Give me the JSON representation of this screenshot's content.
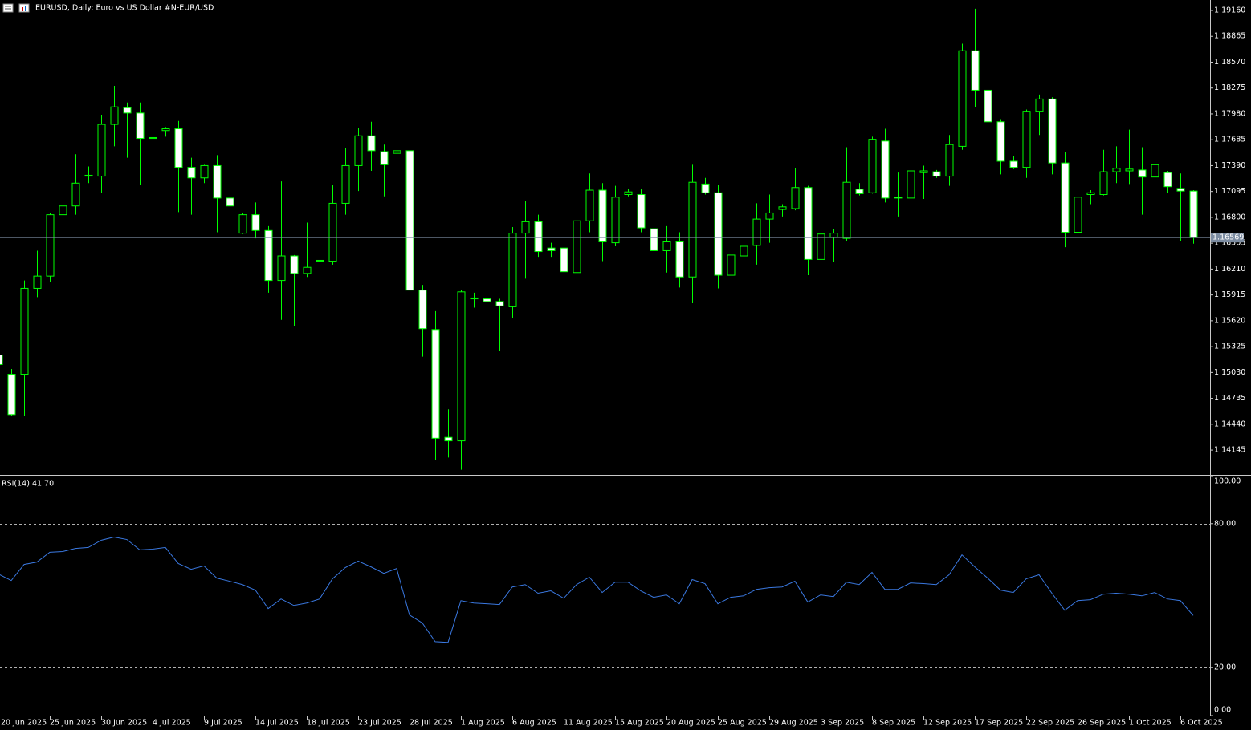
{
  "chart_data": [
    {
      "type": "candlestick",
      "title": "EURUSD, Daily:  Euro vs US Dollar #N-EUR/USD",
      "categories": [
        "20 Jun 2025",
        null,
        null,
        null,
        "25 Jun 2025",
        null,
        null,
        null,
        "30 Jun 2025",
        null,
        null,
        null,
        "4 Jul 2025",
        null,
        null,
        null,
        "9 Jul 2025",
        null,
        null,
        null,
        "14 Jul 2025",
        null,
        null,
        null,
        "18 Jul 2025",
        null,
        null,
        null,
        "23 Jul 2025",
        null,
        null,
        null,
        "28 Jul 2025",
        null,
        null,
        null,
        "1 Aug 2025",
        null,
        null,
        null,
        "6 Aug 2025",
        null,
        null,
        null,
        "11 Aug 2025",
        null,
        null,
        null,
        "15 Aug 2025",
        null,
        null,
        null,
        "20 Aug 2025",
        null,
        null,
        null,
        "25 Aug 2025",
        null,
        null,
        null,
        "29 Aug 2025",
        null,
        null,
        null,
        "3 Sep 2025",
        null,
        null,
        null,
        "8 Sep 2025",
        null,
        null,
        null,
        "12 Sep 2025",
        null,
        null,
        null,
        "17 Sep 2025",
        null,
        null,
        null,
        "22 Sep 2025",
        null,
        null,
        null,
        "26 Sep 2025",
        null,
        null,
        null,
        "1 Oct 2025",
        null,
        null,
        null,
        "6 Oct 2025",
        null
      ],
      "open": [
        1.1523,
        1.1501,
        1.1501,
        1.1599,
        1.1613,
        1.1683,
        1.1693,
        1.1727,
        1.1727,
        1.1786,
        1.1805,
        1.1799,
        1.177,
        1.1779,
        1.1781,
        1.1737,
        1.1725,
        1.1739,
        1.1702,
        1.1662,
        1.1683,
        1.1665,
        1.1608,
        1.1636,
        1.1616,
        1.163,
        1.163,
        1.1696,
        1.1739,
        1.1773,
        1.1755,
        1.1753,
        1.1756,
        1.1597,
        1.1552,
        1.1429,
        1.1425,
        1.1587,
        1.1587,
        1.1584,
        1.1578,
        1.1662,
        1.1675,
        1.1645,
        1.1645,
        1.1617,
        1.1676,
        1.1711,
        1.1651,
        1.1706,
        1.1706,
        1.1667,
        1.1642,
        1.1652,
        1.1612,
        1.1718,
        1.1708,
        1.1614,
        1.1636,
        1.1648,
        1.1678,
        1.1689,
        1.169,
        1.1714,
        1.1632,
        1.1657,
        1.1656,
        1.1712,
        1.1708,
        1.1767,
        1.1703,
        1.1702,
        1.1731,
        1.1732,
        1.1727,
        1.1761,
        1.187,
        1.1825,
        1.1789,
        1.1744,
        1.1737,
        1.1801,
        1.1815,
        1.1742,
        1.1663,
        1.1706,
        1.1706,
        1.1732,
        1.1733,
        1.1734,
        1.1726,
        1.1731,
        1.1713,
        1.171
      ],
      "high": [
        1.1525,
        1.1507,
        1.1608,
        1.1642,
        1.1685,
        1.1743,
        1.1752,
        1.1738,
        1.1797,
        1.183,
        1.1811,
        1.1811,
        1.1788,
        1.1783,
        1.179,
        1.1748,
        1.174,
        1.1751,
        1.1708,
        1.1685,
        1.1697,
        1.167,
        1.1721,
        1.1637,
        1.1674,
        1.1634,
        1.1717,
        1.1759,
        1.1782,
        1.1789,
        1.1763,
        1.1772,
        1.177,
        1.1603,
        1.1573,
        1.1461,
        1.1597,
        1.1594,
        1.1589,
        1.1587,
        1.1669,
        1.1699,
        1.1683,
        1.1651,
        1.1663,
        1.1695,
        1.173,
        1.1719,
        1.1716,
        1.1712,
        1.1712,
        1.169,
        1.167,
        1.1663,
        1.174,
        1.1725,
        1.1717,
        1.1658,
        1.1649,
        1.1696,
        1.1706,
        1.1695,
        1.1736,
        1.1716,
        1.1667,
        1.1667,
        1.176,
        1.1719,
        1.1772,
        1.1781,
        1.1731,
        1.1747,
        1.1739,
        1.1734,
        1.1774,
        1.1878,
        1.1918,
        1.1847,
        1.1792,
        1.175,
        1.1803,
        1.182,
        1.1817,
        1.1754,
        1.1707,
        1.1711,
        1.1757,
        1.1761,
        1.178,
        1.176,
        1.176,
        1.1733,
        1.173,
        1.1711
      ],
      "low": [
        1.1507,
        1.1453,
        1.1453,
        1.1589,
        1.1606,
        1.1681,
        1.1683,
        1.1719,
        1.1708,
        1.1761,
        1.1748,
        1.1717,
        1.1756,
        1.1772,
        1.1686,
        1.1683,
        1.1719,
        1.1663,
        1.1688,
        1.1661,
        1.1656,
        1.1594,
        1.1563,
        1.1556,
        1.1612,
        1.1623,
        1.1626,
        1.1683,
        1.171,
        1.1733,
        1.1704,
        1.1752,
        1.1587,
        1.1521,
        1.1403,
        1.1406,
        1.1392,
        1.1577,
        1.1549,
        1.1528,
        1.1565,
        1.161,
        1.1635,
        1.1635,
        1.1591,
        1.1603,
        1.1663,
        1.163,
        1.1647,
        1.1704,
        1.1663,
        1.1637,
        1.1617,
        1.16,
        1.1582,
        1.1706,
        1.1599,
        1.1606,
        1.1574,
        1.1626,
        1.1651,
        1.1681,
        1.1688,
        1.1614,
        1.1608,
        1.1629,
        1.1653,
        1.1705,
        1.1707,
        1.1697,
        1.1681,
        1.1656,
        1.1701,
        1.1725,
        1.1716,
        1.1757,
        1.1806,
        1.1773,
        1.1729,
        1.1735,
        1.1725,
        1.1774,
        1.1729,
        1.1646,
        1.166,
        1.1695,
        1.1705,
        1.1719,
        1.1718,
        1.1683,
        1.1719,
        1.1708,
        1.1653,
        1.165
      ],
      "close": [
        1.1512,
        1.1455,
        1.1599,
        1.1613,
        1.1683,
        1.1693,
        1.1719,
        1.1728,
        1.1786,
        1.1806,
        1.1799,
        1.177,
        1.1771,
        1.1781,
        1.1737,
        1.1725,
        1.1739,
        1.1702,
        1.1693,
        1.1683,
        1.1665,
        1.1608,
        1.1636,
        1.1616,
        1.1623,
        1.1631,
        1.1696,
        1.1739,
        1.1773,
        1.1756,
        1.174,
        1.1756,
        1.1597,
        1.1553,
        1.1428,
        1.1425,
        1.1595,
        1.1588,
        1.1584,
        1.1579,
        1.1662,
        1.1675,
        1.1641,
        1.1642,
        1.1618,
        1.1676,
        1.1711,
        1.1652,
        1.1703,
        1.1709,
        1.1668,
        1.1642,
        1.1652,
        1.1612,
        1.172,
        1.1708,
        1.1614,
        1.1637,
        1.1647,
        1.1678,
        1.1685,
        1.1692,
        1.1714,
        1.1632,
        1.1661,
        1.1662,
        1.172,
        1.1707,
        1.1769,
        1.1702,
        1.1702,
        1.1733,
        1.1733,
        1.1727,
        1.1763,
        1.187,
        1.1825,
        1.1789,
        1.1744,
        1.1737,
        1.1801,
        1.1815,
        1.1742,
        1.1663,
        1.1703,
        1.1708,
        1.1732,
        1.1736,
        1.1735,
        1.1726,
        1.174,
        1.1715,
        1.171,
        1.16569
      ],
      "up_color": "#000000",
      "down_color": "#ffffff",
      "wick_color": "#00ff00",
      "current_price": 1.16569,
      "current_price_color": "#7b8ba0",
      "ylim": [
        1.13862,
        1.19279
      ],
      "yticks": [
        {
          "value": 1.1916,
          "label": "1.19160"
        },
        1.18865,
        {
          "value": 1.1857,
          "label": "1.18570"
        },
        1.18275,
        {
          "value": 1.1798,
          "label": "1.17980"
        },
        1.17685,
        {
          "value": 1.1739,
          "label": "1.17390"
        },
        1.17095,
        {
          "value": 1.168,
          "label": "1.16800"
        },
        1.16505,
        {
          "value": 1.1621,
          "label": "1.16210"
        },
        1.15915,
        {
          "value": 1.1562,
          "label": "1.15620"
        },
        1.15325,
        {
          "value": 1.1503,
          "label": "1.15030"
        },
        1.14735,
        {
          "value": 1.1444,
          "label": "1.14440"
        },
        1.14145
      ]
    },
    {
      "type": "line",
      "title": "RSI(14) 41.70",
      "color": "#3a78e0",
      "values": [
        59.0,
        56.3,
        63.0,
        64.0,
        68.1,
        68.4,
        69.7,
        70.1,
        73.1,
        74.4,
        73.4,
        69.1,
        69.4,
        70.1,
        63.4,
        61.0,
        62.4,
        57.3,
        56.0,
        54.6,
        52.3,
        44.6,
        48.6,
        45.9,
        46.9,
        48.6,
        57.0,
        61.7,
        64.4,
        62.0,
        59.3,
        61.3,
        41.9,
        38.6,
        30.8,
        30.5,
        47.9,
        46.9,
        46.6,
        46.3,
        53.6,
        54.6,
        51.0,
        52.0,
        48.9,
        54.6,
        57.7,
        51.3,
        55.6,
        55.6,
        52.0,
        49.3,
        50.3,
        46.6,
        56.7,
        55.0,
        46.6,
        49.3,
        49.9,
        52.6,
        53.3,
        53.6,
        56.0,
        47.3,
        50.3,
        49.6,
        55.6,
        54.6,
        59.7,
        52.6,
        52.6,
        55.3,
        55.0,
        54.6,
        58.7,
        67.0,
        62.0,
        57.3,
        52.3,
        51.3,
        57.0,
        58.7,
        51.0,
        43.9,
        47.9,
        48.3,
        50.6,
        51.0,
        50.6,
        49.9,
        51.3,
        48.6,
        47.9,
        41.7
      ],
      "levels": [
        80,
        20
      ],
      "ylim": [
        0,
        100
      ],
      "yticks": [
        {
          "value": 100,
          "label": "100.00"
        },
        {
          "value": 80,
          "label": "80.00"
        },
        {
          "value": 20,
          "label": "20.00"
        },
        {
          "value": 0,
          "label": "0.00"
        }
      ]
    }
  ]
}
